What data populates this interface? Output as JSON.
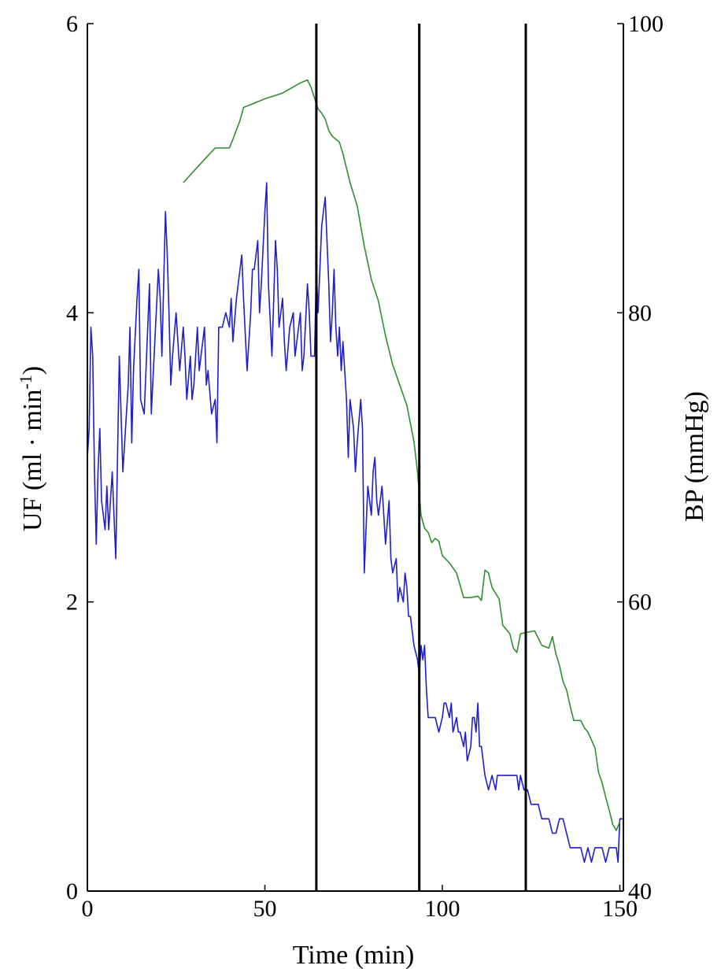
{
  "chart_data": {
    "type": "line",
    "title": "",
    "xlabel": "Time (min)",
    "ylabel_left": "UF (ml · min",
    "ylabel_left_sup": "-1",
    "ylabel_left_close": ")",
    "ylabel_right": "BP (mmHg)",
    "xlim": [
      0,
      151
    ],
    "ylim_left": [
      0,
      6
    ],
    "ylim_right": [
      40,
      100
    ],
    "x_ticks": [
      0,
      50,
      100,
      150
    ],
    "x_tick_labels": [
      "0",
      "50",
      "100",
      "150"
    ],
    "y_left_ticks": [
      0,
      2,
      4,
      6
    ],
    "y_left_tick_labels": [
      "0",
      "2",
      "4",
      "6"
    ],
    "y_right_ticks": [
      40,
      60,
      80,
      100
    ],
    "y_right_tick_labels": [
      "40",
      "60",
      "80",
      "100"
    ],
    "vertical_lines_x": [
      64.5,
      93.5,
      123.5
    ],
    "grid": false,
    "series": [
      {
        "axis": "left",
        "color": "#1f1fcc",
        "points": [
          [
            0,
            3.0
          ],
          [
            0.5,
            3.2
          ],
          [
            1,
            3.9
          ],
          [
            1.5,
            3.7
          ],
          [
            2,
            2.9
          ],
          [
            2.5,
            2.4
          ],
          [
            3,
            2.9
          ],
          [
            3.5,
            3.2
          ],
          [
            4,
            2.7
          ],
          [
            5,
            2.5
          ],
          [
            5.5,
            2.8
          ],
          [
            6,
            2.5
          ],
          [
            7,
            2.9
          ],
          [
            7.5,
            2.6
          ],
          [
            8,
            2.3
          ],
          [
            8.5,
            3.0
          ],
          [
            9,
            3.7
          ],
          [
            9.5,
            3.3
          ],
          [
            10,
            2.9
          ],
          [
            11,
            3.3
          ],
          [
            11.5,
            3.5
          ],
          [
            12,
            3.9
          ],
          [
            12.5,
            3.1
          ],
          [
            13,
            3.6
          ],
          [
            14,
            4.1
          ],
          [
            14.5,
            4.3
          ],
          [
            15,
            3.4
          ],
          [
            16,
            3.3
          ],
          [
            17,
            3.9
          ],
          [
            17.5,
            4.2
          ],
          [
            18,
            3.3
          ],
          [
            19,
            3.8
          ],
          [
            20,
            4.3
          ],
          [
            20.5,
            4.1
          ],
          [
            21,
            3.7
          ],
          [
            22,
            4.7
          ],
          [
            22.5,
            4.4
          ],
          [
            23,
            4.0
          ],
          [
            23.5,
            3.5
          ],
          [
            24,
            3.7
          ],
          [
            25,
            4.0
          ],
          [
            25.5,
            3.8
          ],
          [
            26,
            3.6
          ],
          [
            27,
            3.9
          ],
          [
            27.5,
            3.7
          ],
          [
            28,
            3.4
          ],
          [
            29,
            3.7
          ],
          [
            29.5,
            3.4
          ],
          [
            30,
            3.5
          ],
          [
            31,
            3.9
          ],
          [
            31.5,
            3.6
          ],
          [
            32,
            3.7
          ],
          [
            33,
            3.9
          ],
          [
            33.5,
            3.5
          ],
          [
            34,
            3.6
          ],
          [
            35,
            3.3
          ],
          [
            36,
            3.4
          ],
          [
            36.5,
            3.1
          ],
          [
            37,
            3.9
          ],
          [
            38,
            3.9
          ],
          [
            39,
            4.0
          ],
          [
            40,
            3.9
          ],
          [
            40.5,
            4.1
          ],
          [
            41,
            3.8
          ],
          [
            42,
            4.1
          ],
          [
            43,
            4.3
          ],
          [
            43.5,
            4.4
          ],
          [
            44,
            4.1
          ],
          [
            45,
            3.6
          ],
          [
            46,
            4.0
          ],
          [
            46.5,
            4.3
          ],
          [
            47,
            4.3
          ],
          [
            48,
            4.5
          ],
          [
            48.5,
            4.0
          ],
          [
            49,
            4.2
          ],
          [
            50,
            4.7
          ],
          [
            50.5,
            4.9
          ],
          [
            51,
            4.2
          ],
          [
            52,
            3.7
          ],
          [
            52.5,
            4.1
          ],
          [
            53,
            4.5
          ],
          [
            53.5,
            4.3
          ],
          [
            54,
            3.9
          ],
          [
            55,
            4.1
          ],
          [
            55.5,
            3.8
          ],
          [
            56,
            3.6
          ],
          [
            57,
            3.9
          ],
          [
            58,
            4.0
          ],
          [
            58.5,
            3.7
          ],
          [
            59,
            3.8
          ],
          [
            60,
            4.0
          ],
          [
            60.5,
            3.6
          ],
          [
            61,
            3.7
          ],
          [
            62,
            4.2
          ],
          [
            62.5,
            4.0
          ],
          [
            63,
            3.7
          ],
          [
            64,
            3.7
          ],
          [
            64.5,
            4.3
          ],
          [
            65,
            4.0
          ],
          [
            66,
            4.6
          ],
          [
            66.5,
            4.7
          ],
          [
            67,
            4.8
          ],
          [
            67.5,
            4.5
          ],
          [
            68,
            4.2
          ],
          [
            68.5,
            3.8
          ],
          [
            69,
            4.0
          ],
          [
            69.5,
            4.3
          ],
          [
            70,
            3.9
          ],
          [
            70.5,
            3.7
          ],
          [
            71,
            3.9
          ],
          [
            71.5,
            3.6
          ],
          [
            72,
            3.8
          ],
          [
            73,
            3.4
          ],
          [
            73.5,
            3.0
          ],
          [
            74,
            3.4
          ],
          [
            75,
            3.2
          ],
          [
            75.5,
            2.9
          ],
          [
            76,
            3.1
          ],
          [
            77,
            3.4
          ],
          [
            77.5,
            3.2
          ],
          [
            78,
            2.2
          ],
          [
            78.5,
            2.5
          ],
          [
            79,
            2.8
          ],
          [
            80,
            2.6
          ],
          [
            80.5,
            2.9
          ],
          [
            81,
            3.0
          ],
          [
            81.5,
            2.7
          ],
          [
            82,
            2.6
          ],
          [
            83,
            2.8
          ],
          [
            83.5,
            2.6
          ],
          [
            84,
            2.4
          ],
          [
            85,
            2.7
          ],
          [
            85.5,
            2.3
          ],
          [
            86,
            2.2
          ],
          [
            87,
            2.3
          ],
          [
            87.5,
            2.0
          ],
          [
            88,
            2.1
          ],
          [
            89,
            2.0
          ],
          [
            89.5,
            2.2
          ],
          [
            90,
            2.1
          ],
          [
            90.5,
            1.9
          ],
          [
            91,
            1.9
          ],
          [
            92,
            1.7
          ],
          [
            93,
            1.6
          ],
          [
            93.5,
            1.5
          ],
          [
            94,
            1.7
          ],
          [
            94.5,
            1.6
          ],
          [
            95,
            1.7
          ],
          [
            95.5,
            1.4
          ],
          [
            96,
            1.2
          ],
          [
            97,
            1.2
          ],
          [
            98,
            1.2
          ],
          [
            99,
            1.1
          ],
          [
            100,
            1.2
          ],
          [
            100.5,
            1.3
          ],
          [
            101,
            1.3
          ],
          [
            102,
            1.2
          ],
          [
            102.5,
            1.3
          ],
          [
            103,
            1.1
          ],
          [
            104,
            1.2
          ],
          [
            104.5,
            1.1
          ],
          [
            105,
            1.1
          ],
          [
            106,
            1.0
          ],
          [
            106.5,
            1.1
          ],
          [
            107,
            0.9
          ],
          [
            108,
            1.0
          ],
          [
            108.5,
            1.2
          ],
          [
            109,
            1.2
          ],
          [
            109.5,
            1.1
          ],
          [
            110,
            1.3
          ],
          [
            110.5,
            1.0
          ],
          [
            111,
            1.0
          ],
          [
            112,
            0.8
          ],
          [
            113,
            0.7
          ],
          [
            114,
            0.8
          ],
          [
            115,
            0.7
          ],
          [
            115.5,
            0.8
          ],
          [
            116,
            0.8
          ],
          [
            117,
            0.8
          ],
          [
            118,
            0.8
          ],
          [
            119,
            0.8
          ],
          [
            120,
            0.8
          ],
          [
            121,
            0.8
          ],
          [
            121.5,
            0.7
          ],
          [
            122,
            0.8
          ],
          [
            123,
            0.7
          ],
          [
            124,
            0.7
          ],
          [
            125,
            0.6
          ],
          [
            126,
            0.6
          ],
          [
            127,
            0.6
          ],
          [
            128,
            0.5
          ],
          [
            129,
            0.5
          ],
          [
            130,
            0.5
          ],
          [
            131,
            0.4
          ],
          [
            132,
            0.4
          ],
          [
            133,
            0.5
          ],
          [
            134,
            0.5
          ],
          [
            135,
            0.4
          ],
          [
            136,
            0.3
          ],
          [
            137,
            0.3
          ],
          [
            138,
            0.3
          ],
          [
            139,
            0.3
          ],
          [
            140,
            0.2
          ],
          [
            141,
            0.3
          ],
          [
            142,
            0.2
          ],
          [
            143,
            0.3
          ],
          [
            144,
            0.3
          ],
          [
            145,
            0.3
          ],
          [
            146,
            0.2
          ],
          [
            147,
            0.3
          ],
          [
            148,
            0.3
          ],
          [
            149,
            0.3
          ],
          [
            149.5,
            0.2
          ],
          [
            150,
            0.5
          ],
          [
            150.5,
            0.5
          ],
          [
            151,
            0.5
          ]
        ]
      },
      {
        "axis": "right",
        "color": "#2f8f2f",
        "points": [
          [
            27,
            89.0
          ],
          [
            30,
            89.8
          ],
          [
            33,
            90.6
          ],
          [
            36,
            91.4
          ],
          [
            40,
            91.4
          ],
          [
            41,
            92.0
          ],
          [
            43,
            93.3
          ],
          [
            44,
            94.2
          ],
          [
            45,
            94.3
          ],
          [
            50,
            94.8
          ],
          [
            55,
            95.2
          ],
          [
            60,
            95.9
          ],
          [
            62,
            96.1
          ],
          [
            63,
            95.6
          ],
          [
            65,
            94.1
          ],
          [
            66,
            93.8
          ],
          [
            67,
            93.4
          ],
          [
            68,
            92.6
          ],
          [
            69,
            92.2
          ],
          [
            70,
            92.0
          ],
          [
            71,
            91.8
          ],
          [
            72,
            91.0
          ],
          [
            74,
            89.0
          ],
          [
            76,
            87.4
          ],
          [
            78,
            84.6
          ],
          [
            80,
            82.3
          ],
          [
            82,
            80.8
          ],
          [
            84,
            78.4
          ],
          [
            86,
            76.4
          ],
          [
            88,
            75.0
          ],
          [
            90,
            73.6
          ],
          [
            92,
            71.1
          ],
          [
            93,
            69.0
          ],
          [
            94,
            66.0
          ],
          [
            95,
            65.1
          ],
          [
            96,
            64.8
          ],
          [
            97,
            64.1
          ],
          [
            98,
            64.4
          ],
          [
            99,
            64.2
          ],
          [
            100,
            63.2
          ],
          [
            102,
            62.7
          ],
          [
            104,
            62.0
          ],
          [
            106,
            60.3
          ],
          [
            108,
            60.3
          ],
          [
            110,
            60.4
          ],
          [
            111,
            60.1
          ],
          [
            112,
            62.2
          ],
          [
            113,
            62.0
          ],
          [
            114,
            61.0
          ],
          [
            115,
            60.6
          ],
          [
            116,
            60.2
          ],
          [
            117,
            58.4
          ],
          [
            119,
            57.8
          ],
          [
            120,
            56.8
          ],
          [
            121,
            56.5
          ],
          [
            122,
            57.8
          ],
          [
            124,
            57.9
          ],
          [
            126,
            58.0
          ],
          [
            128,
            57.0
          ],
          [
            130,
            56.8
          ],
          [
            131,
            57.6
          ],
          [
            132,
            56.4
          ],
          [
            133,
            55.6
          ],
          [
            134,
            54.5
          ],
          [
            135,
            53.9
          ],
          [
            136,
            52.8
          ],
          [
            137,
            51.8
          ],
          [
            139,
            51.8
          ],
          [
            140,
            51.3
          ],
          [
            141,
            51.0
          ],
          [
            143,
            49.9
          ],
          [
            144,
            48.2
          ],
          [
            145,
            47.5
          ],
          [
            146,
            46.5
          ],
          [
            147,
            45.6
          ],
          [
            148,
            44.6
          ],
          [
            149,
            44.2
          ],
          [
            150,
            44.8
          ]
        ]
      }
    ]
  }
}
